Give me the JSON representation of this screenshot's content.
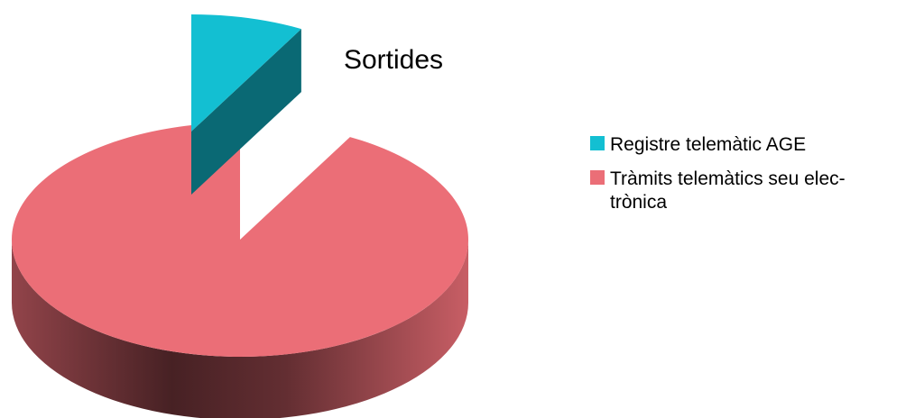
{
  "chart_data": {
    "type": "pie",
    "title": "Sortides",
    "three_d": true,
    "exploded_slice": "Registre telemàtic AGE",
    "legend_position": "right",
    "labels": [
      "Registre telemàtic AGE",
      "Tràmits telemàtics seu electrònica"
    ],
    "values": [
      8,
      92
    ],
    "unit": "%",
    "colors": [
      "#13bfd2",
      "#eb6e77"
    ],
    "legend": [
      {
        "lines": [
          "Registre telemàtic AGE"
        ],
        "color": "#13bfd2"
      },
      {
        "lines": [
          "Tràmits telemàtics seu elec-",
          "trònica"
        ],
        "color": "#eb6e77"
      }
    ]
  }
}
